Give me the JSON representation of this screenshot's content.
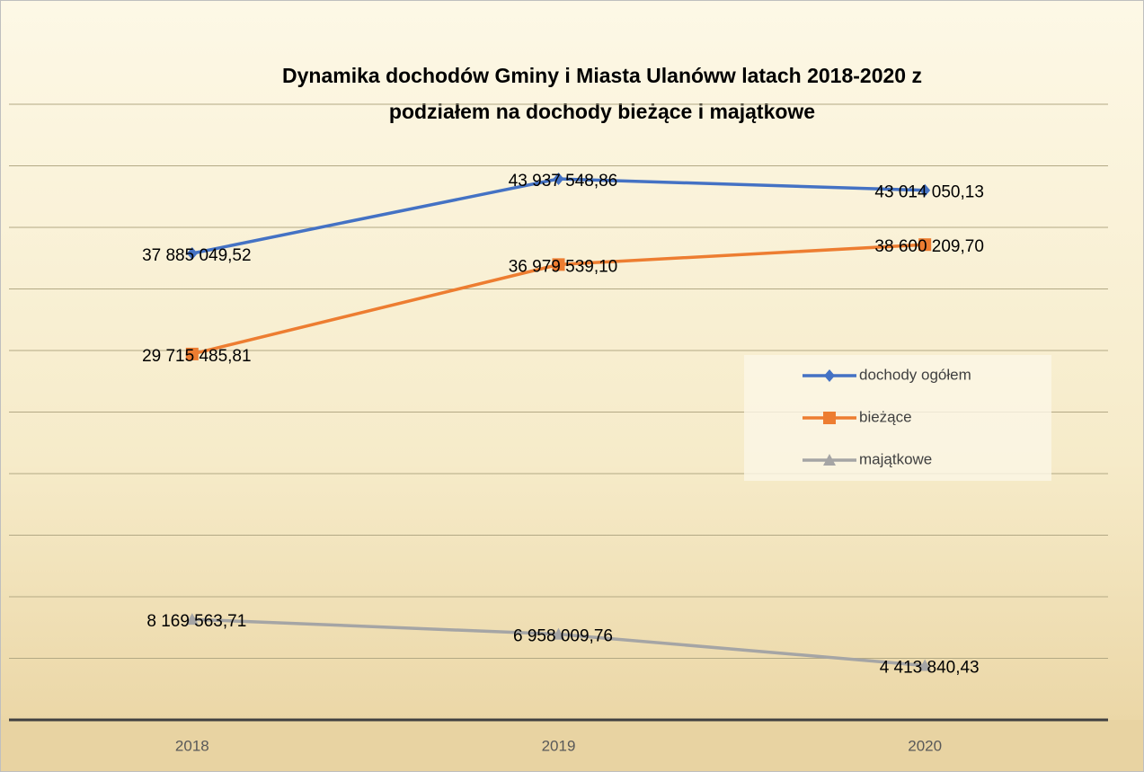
{
  "chart_data": {
    "type": "line",
    "title": [
      "Dynamika dochodów Gminy i Miasta Ulanóww latach 2018-2020  z",
      "podziałem na dochody bieżące i majątkowe"
    ],
    "categories": [
      "2018",
      "2019",
      "2020"
    ],
    "series": [
      {
        "name": "dochody ogółem",
        "color": "#4472c4",
        "values": [
          37885049.52,
          43937548.86,
          43014050.13
        ],
        "value_labels": [
          "37 885 049,52",
          "43 937 548,86",
          "43 014 050,13"
        ]
      },
      {
        "name": "bieżące",
        "color": "#ed7d31",
        "values": [
          29715485.81,
          36979539.1,
          38600209.7
        ],
        "value_labels": [
          "29 715 485,81",
          "36 979 539,10",
          "38 600 209,70"
        ]
      },
      {
        "name": "majątkowe",
        "color": "#a5a5a5",
        "values": [
          8169563.71,
          6958009.76,
          4413840.43
        ],
        "value_labels": [
          "8 169 563,71",
          "6 958 009,76",
          "4 413 840,43"
        ]
      }
    ],
    "ylim": [
      0,
      50000000
    ],
    "yticks": [
      0,
      5000000,
      10000000,
      15000000,
      20000000,
      25000000,
      30000000,
      35000000,
      40000000,
      45000000,
      50000000
    ],
    "grid": true,
    "legend": "right"
  }
}
